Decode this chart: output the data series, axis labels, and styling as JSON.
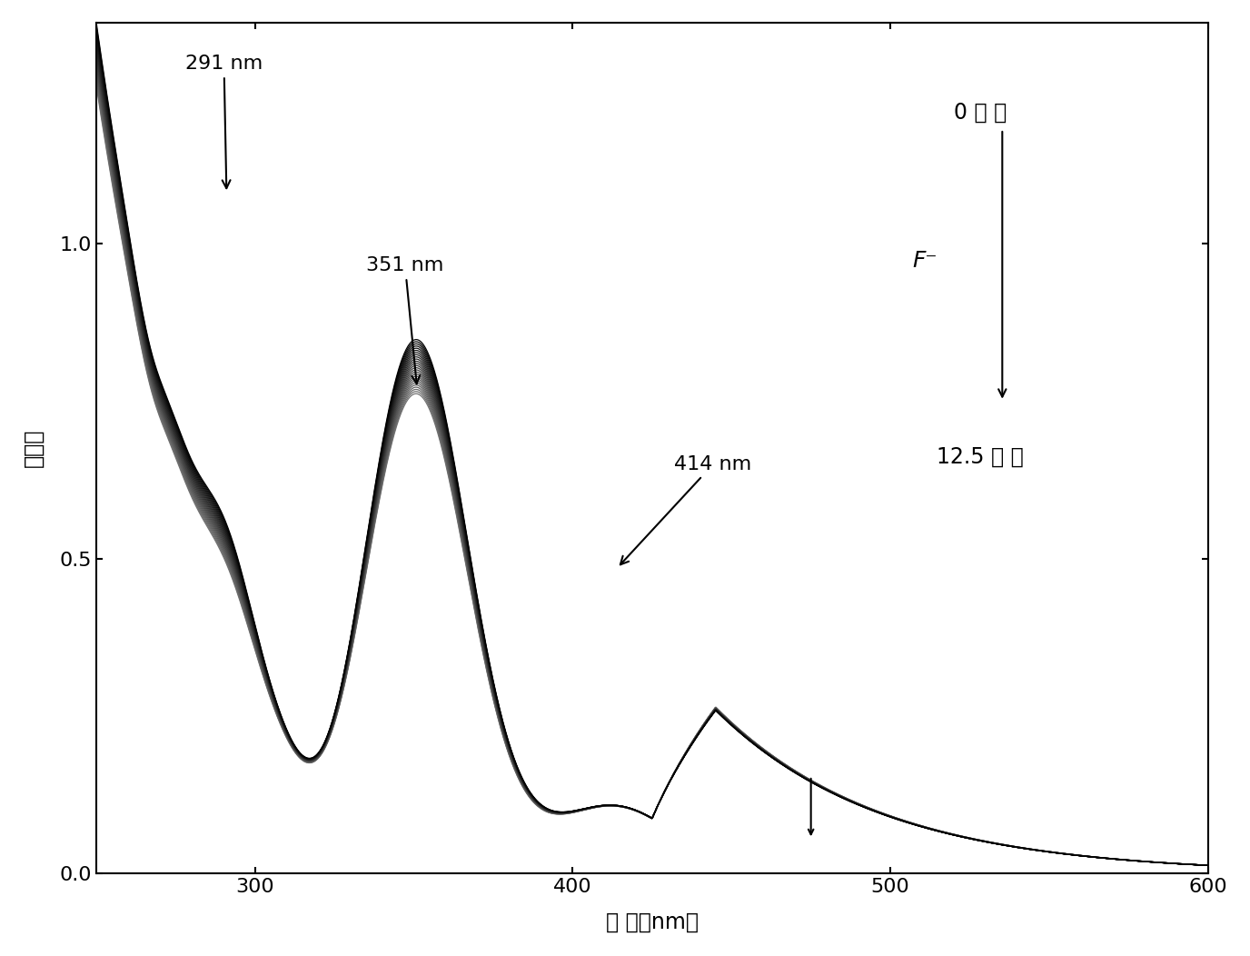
{
  "x_min": 250,
  "x_max": 600,
  "y_min": 0.0,
  "y_max": 1.35,
  "xlabel": "波 长（nm）",
  "ylabel": "吸收度",
  "annotation_291_nm": "291 nm",
  "annotation_351_nm": "351 nm",
  "annotation_414_nm": "414 nm",
  "label_0": "0 当 量",
  "label_F": "F⁻",
  "label_125": "12.5 当 量",
  "xticks": [
    300,
    400,
    500,
    600
  ],
  "yticks": [
    0.0,
    0.5,
    1.0
  ],
  "n_curves": 26,
  "background_color": "#ffffff",
  "linewidth": 0.9
}
